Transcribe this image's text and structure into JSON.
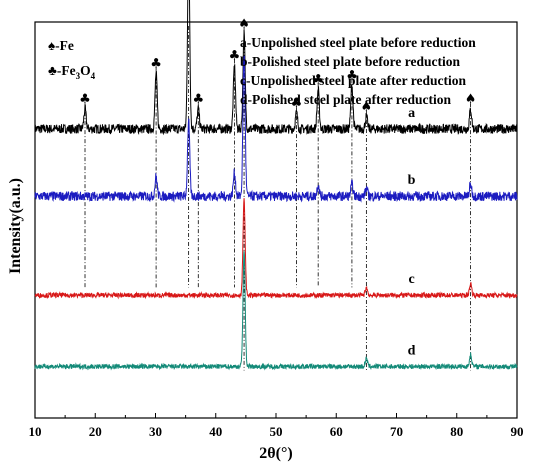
{
  "chart_data": {
    "type": "line",
    "xlabel": "2θ(°)",
    "ylabel": "Intensity(a.u.)",
    "xlim": [
      10,
      90
    ],
    "xticks": [
      10,
      20,
      30,
      40,
      50,
      60,
      70,
      80,
      90
    ],
    "series_key": [
      "a-Unpolished steel plate before reduction",
      "b-Polished steel plate before reduction",
      "c-Unpolished steel plate after reduction",
      "d-Polished steel plate after reduction"
    ],
    "phase_legend": [
      {
        "symbol": "♠",
        "label": "-Fe"
      },
      {
        "symbol": "♣",
        "label": "-Fe3O4"
      }
    ],
    "series": [
      {
        "name": "a",
        "color": "#000000",
        "baseline": 0.73,
        "noise": 0.012,
        "peaks": [
          [
            18.3,
            0.05
          ],
          [
            30.1,
            0.14
          ],
          [
            35.5,
            0.46
          ],
          [
            37.1,
            0.05
          ],
          [
            43.1,
            0.16
          ],
          [
            44.7,
            0.24
          ],
          [
            53.4,
            0.04
          ],
          [
            57.0,
            0.1
          ],
          [
            62.6,
            0.11
          ],
          [
            65.0,
            0.03
          ],
          [
            82.3,
            0.05
          ]
        ]
      },
      {
        "name": "b",
        "color": "#1c1cc0",
        "baseline": 0.56,
        "noise": 0.012,
        "peaks": [
          [
            30.1,
            0.05
          ],
          [
            35.5,
            0.19
          ],
          [
            43.1,
            0.06
          ],
          [
            44.7,
            0.36
          ],
          [
            57.0,
            0.03
          ],
          [
            62.6,
            0.03
          ],
          [
            65.0,
            0.02
          ],
          [
            82.3,
            0.03
          ]
        ]
      },
      {
        "name": "c",
        "color": "#d81818",
        "baseline": 0.31,
        "noise": 0.006,
        "peaks": [
          [
            44.7,
            0.24
          ],
          [
            65.0,
            0.02
          ],
          [
            82.3,
            0.03
          ]
        ]
      },
      {
        "name": "d",
        "color": "#138a78",
        "baseline": 0.13,
        "noise": 0.006,
        "peaks": [
          [
            44.7,
            0.29
          ],
          [
            65.0,
            0.02
          ],
          [
            82.3,
            0.03
          ]
        ]
      }
    ],
    "reference_lines": [
      {
        "x": 18.3,
        "phase": "Fe3O4"
      },
      {
        "x": 30.1,
        "phase": "Fe3O4"
      },
      {
        "x": 35.5,
        "phase": "Fe3O4"
      },
      {
        "x": 37.1,
        "phase": "Fe3O4"
      },
      {
        "x": 43.1,
        "phase": "Fe3O4"
      },
      {
        "x": 44.7,
        "phase": "Fe"
      },
      {
        "x": 53.4,
        "phase": "Fe3O4"
      },
      {
        "x": 57.0,
        "phase": "Fe3O4"
      },
      {
        "x": 62.6,
        "phase": "Fe3O4"
      },
      {
        "x": 65.0,
        "phase": "Fe"
      },
      {
        "x": 82.3,
        "phase": "Fe"
      }
    ]
  }
}
